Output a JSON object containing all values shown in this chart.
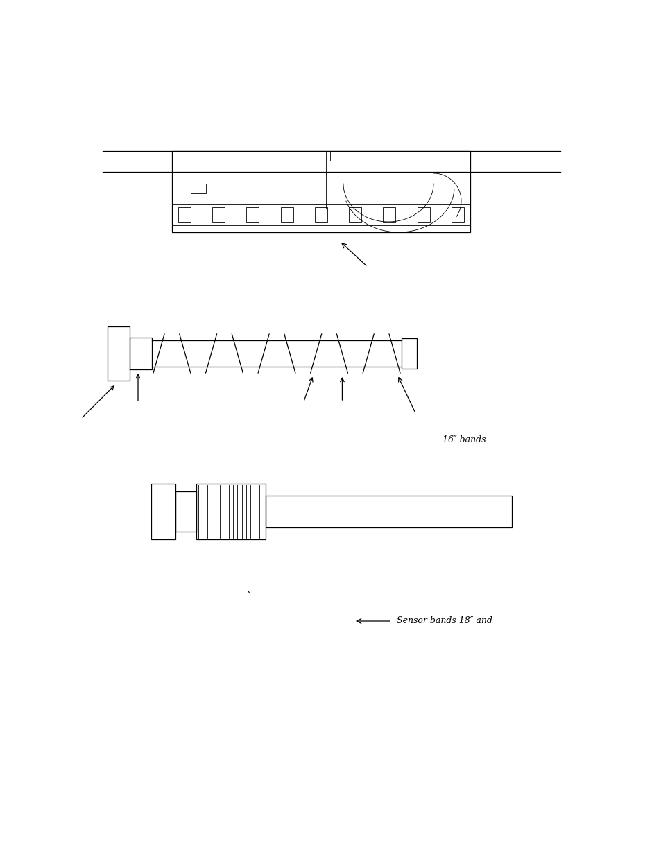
{
  "bg_color": "#ffffff",
  "fig_width": 9.54,
  "fig_height": 12.35,
  "label_16bands": "16″ bands",
  "label_sensor_bands": "Sensor bands 18″ and",
  "backtick_label": "`"
}
